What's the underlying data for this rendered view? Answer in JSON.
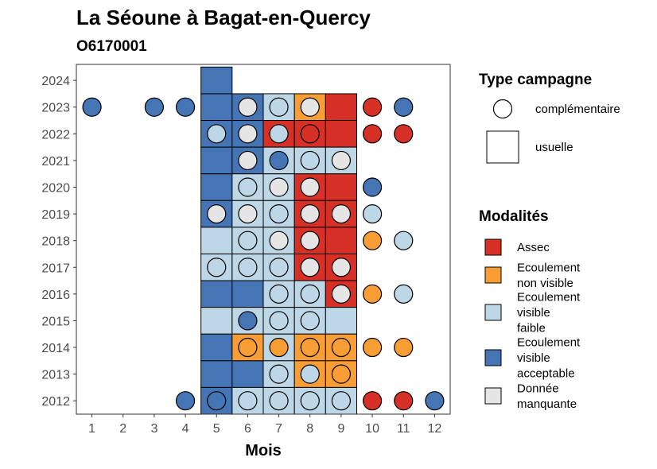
{
  "chart_data": {
    "type": "heatmap",
    "title": "La Séoune à Bagat-en-Quercy",
    "subtitle": "O6170001",
    "xlabel": "Mois",
    "ylabel": "",
    "x_ticks": [
      "1",
      "2",
      "3",
      "4",
      "5",
      "6",
      "7",
      "8",
      "9",
      "10",
      "11",
      "12"
    ],
    "y_ticks": [
      "2012",
      "2013",
      "2014",
      "2015",
      "2016",
      "2017",
      "2018",
      "2019",
      "2020",
      "2021",
      "2022",
      "2023",
      "2024"
    ],
    "xlim": [
      0.5,
      12.5
    ],
    "ylim": [
      2011.5,
      2024.6
    ],
    "grid": false,
    "legend_position": "right",
    "colors": {
      "Assec": "#d73027",
      "Ecoulement non visible": "#f99d35",
      "Ecoulement visible faible": "#bdd7e7",
      "Ecoulement visible acceptable": "#4575b4",
      "Donnée manquante": "#e5e5e5"
    },
    "legend_shape": {
      "title": "Type campagne",
      "entries": [
        {
          "key": "complementaire",
          "label": "complémentaire",
          "shape": "circle"
        },
        {
          "key": "usuelle",
          "label": "usuelle",
          "shape": "square"
        }
      ]
    },
    "legend_fill": {
      "title": "Modalités",
      "entries": [
        {
          "key": "Assec",
          "lines": [
            "Assec"
          ]
        },
        {
          "key": "Ecoulement non visible",
          "lines": [
            "Ecoulement",
            "non visible"
          ]
        },
        {
          "key": "Ecoulement visible faible",
          "lines": [
            "Ecoulement",
            "visible",
            "faible"
          ]
        },
        {
          "key": "Ecoulement visible acceptable",
          "lines": [
            "Ecoulement",
            "visible",
            "acceptable"
          ]
        },
        {
          "key": "Donnée manquante",
          "lines": [
            "Donnée",
            "manquante"
          ]
        }
      ]
    },
    "usuelle": [
      {
        "year": 2024,
        "month": 5,
        "modalite": "Ecoulement visible acceptable"
      },
      {
        "year": 2023,
        "month": 5,
        "modalite": "Ecoulement visible acceptable"
      },
      {
        "year": 2023,
        "month": 6,
        "modalite": "Ecoulement visible acceptable"
      },
      {
        "year": 2023,
        "month": 7,
        "modalite": "Ecoulement visible faible"
      },
      {
        "year": 2023,
        "month": 8,
        "modalite": "Ecoulement non visible"
      },
      {
        "year": 2023,
        "month": 9,
        "modalite": "Assec"
      },
      {
        "year": 2022,
        "month": 5,
        "modalite": "Ecoulement visible acceptable"
      },
      {
        "year": 2022,
        "month": 6,
        "modalite": "Ecoulement visible acceptable"
      },
      {
        "year": 2022,
        "month": 7,
        "modalite": "Assec"
      },
      {
        "year": 2022,
        "month": 8,
        "modalite": "Assec"
      },
      {
        "year": 2022,
        "month": 9,
        "modalite": "Assec"
      },
      {
        "year": 2021,
        "month": 5,
        "modalite": "Ecoulement visible acceptable"
      },
      {
        "year": 2021,
        "month": 6,
        "modalite": "Ecoulement visible acceptable"
      },
      {
        "year": 2021,
        "month": 7,
        "modalite": "Ecoulement visible faible"
      },
      {
        "year": 2021,
        "month": 8,
        "modalite": "Ecoulement visible faible"
      },
      {
        "year": 2021,
        "month": 9,
        "modalite": "Ecoulement visible faible"
      },
      {
        "year": 2020,
        "month": 5,
        "modalite": "Ecoulement visible acceptable"
      },
      {
        "year": 2020,
        "month": 6,
        "modalite": "Ecoulement visible faible"
      },
      {
        "year": 2020,
        "month": 7,
        "modalite": "Ecoulement visible faible"
      },
      {
        "year": 2020,
        "month": 8,
        "modalite": "Assec"
      },
      {
        "year": 2020,
        "month": 9,
        "modalite": "Assec"
      },
      {
        "year": 2019,
        "month": 5,
        "modalite": "Ecoulement visible acceptable"
      },
      {
        "year": 2019,
        "month": 6,
        "modalite": "Ecoulement visible faible"
      },
      {
        "year": 2019,
        "month": 7,
        "modalite": "Ecoulement visible faible"
      },
      {
        "year": 2019,
        "month": 8,
        "modalite": "Assec"
      },
      {
        "year": 2019,
        "month": 9,
        "modalite": "Assec"
      },
      {
        "year": 2018,
        "month": 5,
        "modalite": "Ecoulement visible faible"
      },
      {
        "year": 2018,
        "month": 6,
        "modalite": "Ecoulement visible faible"
      },
      {
        "year": 2018,
        "month": 7,
        "modalite": "Ecoulement visible faible"
      },
      {
        "year": 2018,
        "month": 8,
        "modalite": "Assec"
      },
      {
        "year": 2018,
        "month": 9,
        "modalite": "Assec"
      },
      {
        "year": 2017,
        "month": 5,
        "modalite": "Ecoulement visible faible"
      },
      {
        "year": 2017,
        "month": 6,
        "modalite": "Ecoulement visible faible"
      },
      {
        "year": 2017,
        "month": 7,
        "modalite": "Ecoulement visible faible"
      },
      {
        "year": 2017,
        "month": 8,
        "modalite": "Assec"
      },
      {
        "year": 2017,
        "month": 9,
        "modalite": "Assec"
      },
      {
        "year": 2016,
        "month": 5,
        "modalite": "Ecoulement visible acceptable"
      },
      {
        "year": 2016,
        "month": 6,
        "modalite": "Ecoulement visible acceptable"
      },
      {
        "year": 2016,
        "month": 7,
        "modalite": "Ecoulement visible faible"
      },
      {
        "year": 2016,
        "month": 8,
        "modalite": "Ecoulement visible faible"
      },
      {
        "year": 2016,
        "month": 9,
        "modalite": "Assec"
      },
      {
        "year": 2015,
        "month": 5,
        "modalite": "Ecoulement visible faible"
      },
      {
        "year": 2015,
        "month": 6,
        "modalite": "Ecoulement visible faible"
      },
      {
        "year": 2015,
        "month": 7,
        "modalite": "Ecoulement visible faible"
      },
      {
        "year": 2015,
        "month": 8,
        "modalite": "Ecoulement visible faible"
      },
      {
        "year": 2015,
        "month": 9,
        "modalite": "Ecoulement visible faible"
      },
      {
        "year": 2014,
        "month": 5,
        "modalite": "Ecoulement visible acceptable"
      },
      {
        "year": 2014,
        "month": 6,
        "modalite": "Ecoulement non visible"
      },
      {
        "year": 2014,
        "month": 7,
        "modalite": "Ecoulement visible faible"
      },
      {
        "year": 2014,
        "month": 8,
        "modalite": "Ecoulement non visible"
      },
      {
        "year": 2014,
        "month": 9,
        "modalite": "Ecoulement non visible"
      },
      {
        "year": 2013,
        "month": 5,
        "modalite": "Ecoulement visible acceptable"
      },
      {
        "year": 2013,
        "month": 6,
        "modalite": "Ecoulement visible acceptable"
      },
      {
        "year": 2013,
        "month": 7,
        "modalite": "Ecoulement visible faible"
      },
      {
        "year": 2013,
        "month": 8,
        "modalite": "Ecoulement non visible"
      },
      {
        "year": 2013,
        "month": 9,
        "modalite": "Ecoulement non visible"
      },
      {
        "year": 2012,
        "month": 5,
        "modalite": "Ecoulement visible acceptable"
      },
      {
        "year": 2012,
        "month": 6,
        "modalite": "Ecoulement visible faible"
      },
      {
        "year": 2012,
        "month": 7,
        "modalite": "Ecoulement visible faible"
      },
      {
        "year": 2012,
        "month": 8,
        "modalite": "Ecoulement visible faible"
      },
      {
        "year": 2012,
        "month": 9,
        "modalite": "Ecoulement visible faible"
      }
    ],
    "complementaire": [
      {
        "year": 2023,
        "month": 1,
        "modalite": "Ecoulement visible acceptable"
      },
      {
        "year": 2023,
        "month": 3,
        "modalite": "Ecoulement visible acceptable"
      },
      {
        "year": 2023,
        "month": 4,
        "modalite": "Ecoulement visible acceptable"
      },
      {
        "year": 2023,
        "month": 6,
        "modalite": "Donnée manquante"
      },
      {
        "year": 2023,
        "month": 7,
        "modalite": "Ecoulement visible faible"
      },
      {
        "year": 2023,
        "month": 8,
        "modalite": "Donnée manquante"
      },
      {
        "year": 2023,
        "month": 10,
        "modalite": "Assec"
      },
      {
        "year": 2023,
        "month": 11,
        "modalite": "Ecoulement visible acceptable"
      },
      {
        "year": 2022,
        "month": 5,
        "modalite": "Ecoulement visible faible"
      },
      {
        "year": 2022,
        "month": 6,
        "modalite": "Donnée manquante"
      },
      {
        "year": 2022,
        "month": 7,
        "modalite": "Ecoulement visible faible"
      },
      {
        "year": 2022,
        "month": 8,
        "modalite": "Assec"
      },
      {
        "year": 2022,
        "month": 10,
        "modalite": "Assec"
      },
      {
        "year": 2022,
        "month": 11,
        "modalite": "Assec"
      },
      {
        "year": 2021,
        "month": 6,
        "modalite": "Donnée manquante"
      },
      {
        "year": 2021,
        "month": 7,
        "modalite": "Ecoulement visible acceptable"
      },
      {
        "year": 2021,
        "month": 8,
        "modalite": "Ecoulement visible faible"
      },
      {
        "year": 2021,
        "month": 9,
        "modalite": "Donnée manquante"
      },
      {
        "year": 2020,
        "month": 6,
        "modalite": "Ecoulement visible faible"
      },
      {
        "year": 2020,
        "month": 7,
        "modalite": "Donnée manquante"
      },
      {
        "year": 2020,
        "month": 8,
        "modalite": "Donnée manquante"
      },
      {
        "year": 2020,
        "month": 10,
        "modalite": "Ecoulement visible acceptable"
      },
      {
        "year": 2019,
        "month": 5,
        "modalite": "Donnée manquante"
      },
      {
        "year": 2019,
        "month": 6,
        "modalite": "Donnée manquante"
      },
      {
        "year": 2019,
        "month": 7,
        "modalite": "Ecoulement visible faible"
      },
      {
        "year": 2019,
        "month": 8,
        "modalite": "Donnée manquante"
      },
      {
        "year": 2019,
        "month": 9,
        "modalite": "Donnée manquante"
      },
      {
        "year": 2019,
        "month": 10,
        "modalite": "Ecoulement visible faible"
      },
      {
        "year": 2018,
        "month": 6,
        "modalite": "Ecoulement visible faible"
      },
      {
        "year": 2018,
        "month": 7,
        "modalite": "Donnée manquante"
      },
      {
        "year": 2018,
        "month": 8,
        "modalite": "Donnée manquante"
      },
      {
        "year": 2018,
        "month": 10,
        "modalite": "Ecoulement non visible"
      },
      {
        "year": 2018,
        "month": 11,
        "modalite": "Ecoulement visible faible"
      },
      {
        "year": 2017,
        "month": 5,
        "modalite": "Ecoulement visible faible"
      },
      {
        "year": 2017,
        "month": 6,
        "modalite": "Ecoulement visible faible"
      },
      {
        "year": 2017,
        "month": 7,
        "modalite": "Ecoulement visible faible"
      },
      {
        "year": 2017,
        "month": 8,
        "modalite": "Donnée manquante"
      },
      {
        "year": 2017,
        "month": 9,
        "modalite": "Donnée manquante"
      },
      {
        "year": 2016,
        "month": 7,
        "modalite": "Ecoulement visible faible"
      },
      {
        "year": 2016,
        "month": 8,
        "modalite": "Ecoulement visible faible"
      },
      {
        "year": 2016,
        "month": 9,
        "modalite": "Donnée manquante"
      },
      {
        "year": 2016,
        "month": 10,
        "modalite": "Ecoulement non visible"
      },
      {
        "year": 2016,
        "month": 11,
        "modalite": "Ecoulement visible faible"
      },
      {
        "year": 2015,
        "month": 6,
        "modalite": "Ecoulement visible acceptable"
      },
      {
        "year": 2015,
        "month": 7,
        "modalite": "Ecoulement visible faible"
      },
      {
        "year": 2015,
        "month": 8,
        "modalite": "Ecoulement visible faible"
      },
      {
        "year": 2014,
        "month": 6,
        "modalite": "Ecoulement non visible"
      },
      {
        "year": 2014,
        "month": 7,
        "modalite": "Ecoulement non visible"
      },
      {
        "year": 2014,
        "month": 8,
        "modalite": "Ecoulement non visible"
      },
      {
        "year": 2014,
        "month": 9,
        "modalite": "Ecoulement non visible"
      },
      {
        "year": 2014,
        "month": 10,
        "modalite": "Ecoulement non visible"
      },
      {
        "year": 2014,
        "month": 11,
        "modalite": "Ecoulement non visible"
      },
      {
        "year": 2013,
        "month": 7,
        "modalite": "Ecoulement visible faible"
      },
      {
        "year": 2013,
        "month": 8,
        "modalite": "Ecoulement visible faible"
      },
      {
        "year": 2013,
        "month": 9,
        "modalite": "Ecoulement non visible"
      },
      {
        "year": 2012,
        "month": 4,
        "modalite": "Ecoulement visible acceptable"
      },
      {
        "year": 2012,
        "month": 5,
        "modalite": "Ecoulement visible acceptable"
      },
      {
        "year": 2012,
        "month": 6,
        "modalite": "Ecoulement visible faible"
      },
      {
        "year": 2012,
        "month": 7,
        "modalite": "Ecoulement visible faible"
      },
      {
        "year": 2012,
        "month": 8,
        "modalite": "Ecoulement visible faible"
      },
      {
        "year": 2012,
        "month": 9,
        "modalite": "Ecoulement visible faible"
      },
      {
        "year": 2012,
        "month": 10,
        "modalite": "Assec"
      },
      {
        "year": 2012,
        "month": 11,
        "modalite": "Assec"
      },
      {
        "year": 2012,
        "month": 12,
        "modalite": "Ecoulement visible acceptable"
      }
    ]
  }
}
